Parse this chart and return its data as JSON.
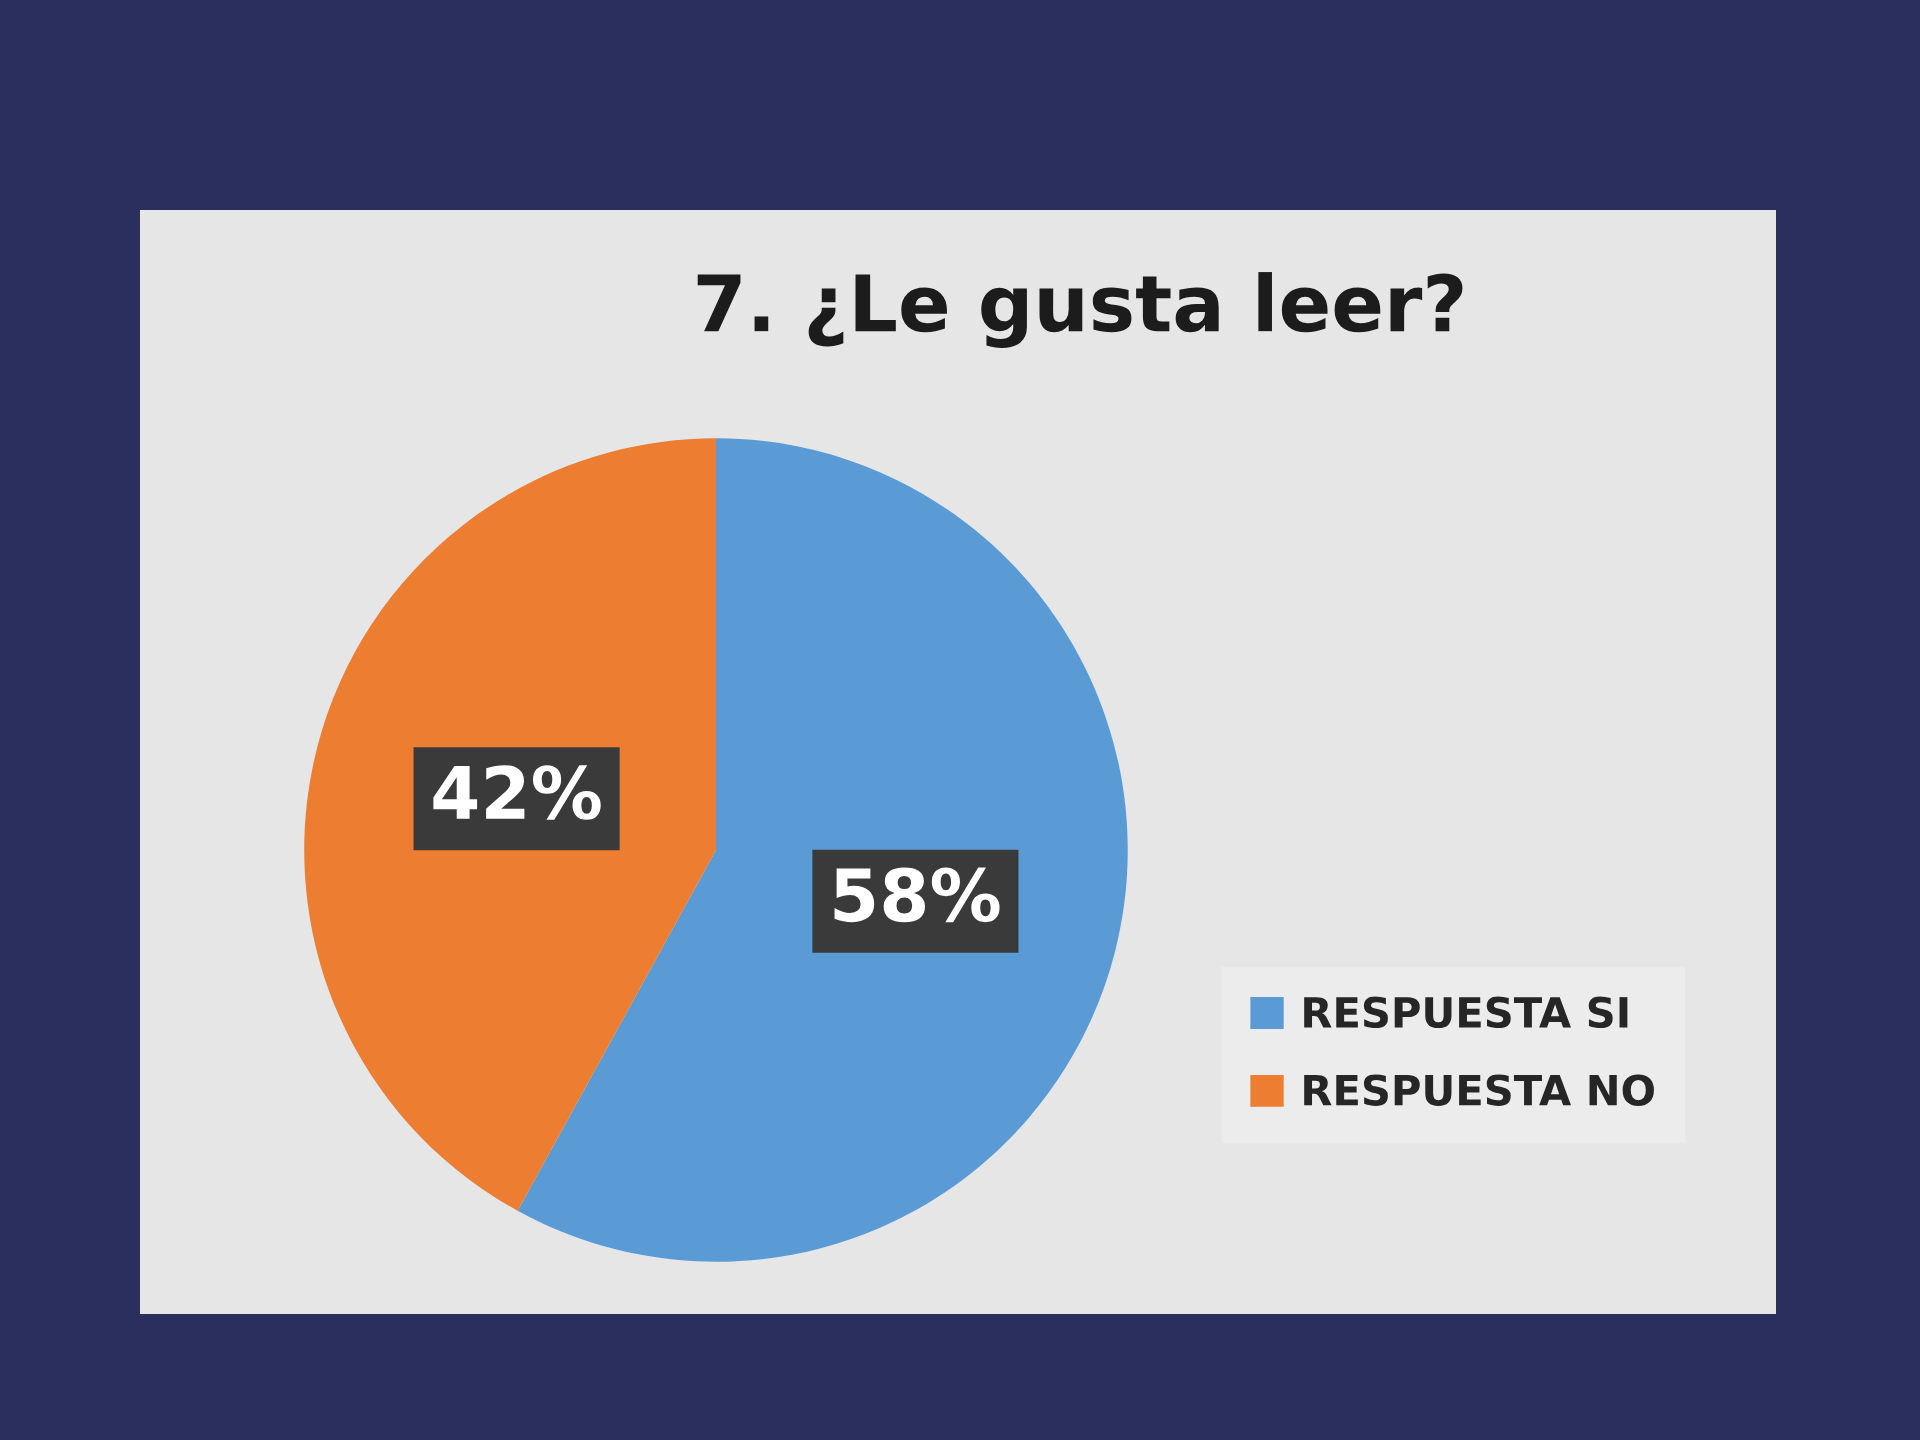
{
  "chart_data": {
    "type": "pie",
    "title": "7. ¿Le gusta leer?",
    "categories": [
      "RESPUESTA SI",
      "RESPUESTA NO"
    ],
    "values": [
      58,
      42
    ],
    "colors": [
      "#5b9bd5",
      "#ed7d31"
    ],
    "value_labels": [
      "58%",
      "42%"
    ],
    "legend": "bottom right"
  }
}
